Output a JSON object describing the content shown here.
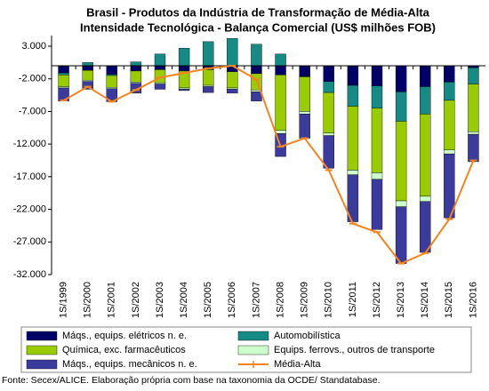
{
  "chart_data": {
    "type": "stacked-bar-line",
    "title": [
      "Brasil - Produtos da Indústria de Transformação de Média-Alta",
      "Intensidade Tecnológica - Balança Comercial (US$ milhões FOB)"
    ],
    "source": "Fonte: Secex/ALICE. Elaboração própria com base na taxonomia da OCDE/ Standatabase.",
    "categories": [
      "1S/1999",
      "1S/2000",
      "1S/2001",
      "1S/2002",
      "1S/2003",
      "1S/2004",
      "1S/2005",
      "1S/2006",
      "1S/2007",
      "1S/2008",
      "1S/2009",
      "1S/2010",
      "1S/2011",
      "1S/2012",
      "1S/2013",
      "1S/2014",
      "1S/2015",
      "1S/2016"
    ],
    "ylim": [
      -32000,
      3000
    ],
    "yticks": [
      {
        "value": 3000,
        "label": "3.000"
      },
      {
        "value": -2000,
        "label": "-2.000"
      },
      {
        "value": -7000,
        "label": "-7.000"
      },
      {
        "value": -12000,
        "label": "-12.000"
      },
      {
        "value": -17000,
        "label": "-17.000"
      },
      {
        "value": -22000,
        "label": "-22.000"
      },
      {
        "value": -27000,
        "label": "-27.000"
      },
      {
        "value": -32000,
        "label": "-32.000"
      }
    ],
    "series": [
      {
        "name": "Máqs., equips. elétricos n. e.",
        "color": "#000066",
        "type": "bar",
        "values": [
          -1100,
          -700,
          -1300,
          -800,
          -600,
          -800,
          -600,
          -900,
          -1200,
          -1400,
          -1600,
          -2400,
          -3000,
          -3100,
          -4000,
          -3200,
          -2500,
          -300
        ]
      },
      {
        "name": "Automobilística",
        "color": "#168a84",
        "type": "bar",
        "values": [
          -300,
          500,
          -200,
          600,
          1800,
          2700,
          3700,
          4200,
          3300,
          1800,
          -100,
          -1700,
          -3200,
          -3400,
          -4500,
          -4200,
          -2800,
          -2500
        ]
      },
      {
        "name": "Química, exc. farmacêuticos",
        "color": "#99cc00",
        "type": "bar",
        "values": [
          -1800,
          -1500,
          -1800,
          -1700,
          -2000,
          -2600,
          -2400,
          -2500,
          -2500,
          -8500,
          -5300,
          -6200,
          -9800,
          -9900,
          -12200,
          -12600,
          -7600,
          -7300
        ]
      },
      {
        "name": "Equips. ferrovs., outros de transporte",
        "color": "#ccffcc",
        "type": "bar",
        "values": [
          -200,
          -200,
          -200,
          -200,
          -200,
          -200,
          -200,
          -200,
          -300,
          -500,
          -400,
          -400,
          -700,
          -1000,
          -900,
          -800,
          -600,
          -400
        ]
      },
      {
        "name": "Máqs., equips. mecânicos  n. e.",
        "color": "#3b3b9e",
        "type": "bar",
        "values": [
          -2000,
          -1200,
          -2000,
          -1500,
          -800,
          -200,
          -900,
          -600,
          -1400,
          -3500,
          -3700,
          -5000,
          -7200,
          -7700,
          -8700,
          -7800,
          -9800,
          -4200
        ]
      },
      {
        "name": "Média-Alta",
        "color": "#f5841f",
        "type": "line",
        "values": [
          -5300,
          -3200,
          -5500,
          -3700,
          -1800,
          -1100,
          -400,
          0,
          -2100,
          -12400,
          -11100,
          -16000,
          -24200,
          -25500,
          -30300,
          -28700,
          -23500,
          -14500
        ]
      }
    ]
  }
}
